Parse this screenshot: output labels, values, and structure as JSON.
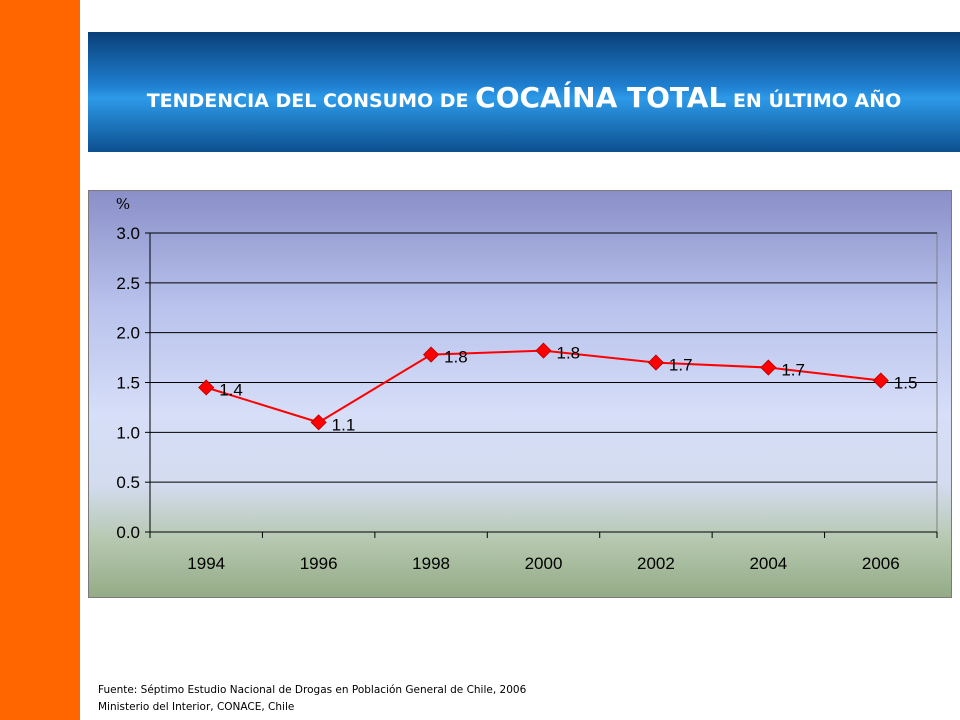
{
  "title": {
    "part1": "TENDENCIA DEL CONSUMO DE ",
    "part2": "COCAÍNA TOTAL",
    "part3": " EN ÚLTIMO AÑO"
  },
  "chart_data": {
    "type": "line",
    "ylabel": "%",
    "categories": [
      "1994",
      "1996",
      "1998",
      "2000",
      "2002",
      "2004",
      "2006"
    ],
    "series": [
      {
        "values": [
          1.45,
          1.1,
          1.78,
          1.82,
          1.7,
          1.65,
          1.52
        ],
        "labels": [
          "1.4",
          "1.1",
          "1.8",
          "1.8",
          "1.7",
          "1.7",
          "1.5"
        ],
        "color": "#ff0000"
      }
    ],
    "yticks": [
      "0.0",
      "0.5",
      "1.0",
      "1.5",
      "2.0",
      "2.5",
      "3.0"
    ],
    "ylim": [
      0,
      3
    ],
    "grid": true
  },
  "footnote": {
    "line1": "Fuente: Séptimo Estudio Nacional de Drogas en Población General de Chile, 2006",
    "line2": "Ministerio del Interior, CONACE, Chile"
  }
}
